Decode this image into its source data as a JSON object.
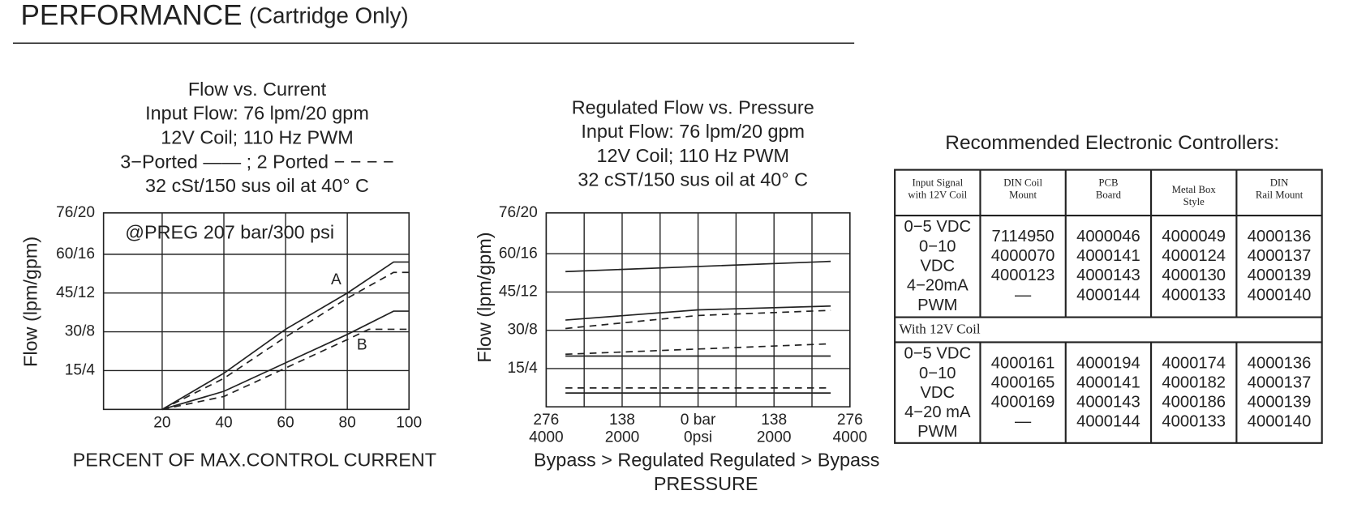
{
  "header": {
    "title": "PERFORMANCE",
    "subtitle": "(Cartridge Only)"
  },
  "chart_data": [
    {
      "type": "line",
      "title": [
        "Flow vs. Current",
        "Input Flow: 76 lpm/20 gpm",
        "12V Coil; 110 Hz PWM",
        "3−Ported —— ; 2 Ported − − − −",
        "32 cSt/150 sus oil at 40°   C"
      ],
      "annotation": "@PREG 207 bar/300 psi",
      "x_label": "PERCENT OF MAX.CONTROL CURRENT",
      "y_label": "Flow (lpm/gpm)",
      "xlim": [
        1,
        100
      ],
      "xticks": [
        20,
        40,
        60,
        80,
        100
      ],
      "ylim": [
        0,
        76
      ],
      "yticks": [
        {
          "value": 15,
          "label": "15/4"
        },
        {
          "value": 30,
          "label": "30/8"
        },
        {
          "value": 45,
          "label": "45/12"
        },
        {
          "value": 60,
          "label": "60/16"
        },
        {
          "value": 76,
          "label": "76/20"
        }
      ],
      "grid": true,
      "series": [
        {
          "label": "A",
          "color": "#222",
          "dash": false,
          "x": [
            20,
            40,
            60,
            80,
            95,
            100
          ],
          "values": [
            0,
            14,
            31,
            45,
            57,
            57
          ]
        },
        {
          "color": "#222",
          "dash": true,
          "x": [
            20,
            40,
            60,
            80,
            95,
            100
          ],
          "values": [
            0,
            12,
            28,
            43,
            53,
            53
          ]
        },
        {
          "label": "B",
          "color": "#222",
          "dash": false,
          "x": [
            20,
            40,
            60,
            80,
            95,
            100
          ],
          "values": [
            0,
            7,
            18,
            29,
            38,
            38
          ]
        },
        {
          "color": "#222",
          "dash": true,
          "x": [
            20,
            40,
            60,
            80,
            87,
            100
          ],
          "values": [
            0,
            5,
            16,
            27,
            31,
            31
          ]
        }
      ]
    },
    {
      "type": "line",
      "title": [
        "Regulated Flow vs. Pressure",
        "Input Flow: 76 lpm/20 gpm",
        "12V Coil; 110 Hz PWM",
        "32 cST/150 sus oil at 40°   C"
      ],
      "x_label": "PRESSURE",
      "x_label_left": "Bypass > Regulated",
      "x_label_right": "Regulated > Bypass",
      "y_label": "Flow (lpm/gpm)",
      "xlim": [
        -276,
        276
      ],
      "xticks": [
        {
          "value": -276,
          "label": "276"
        },
        {
          "value": -138,
          "label": "138"
        },
        {
          "value": 0,
          "label": "0 bar"
        },
        138,
        276
      ],
      "x2lim": [
        -4000,
        4000
      ],
      "x2ticks": [
        {
          "value": -4000,
          "label": "4000"
        },
        {
          "value": -2000,
          "label": "2000"
        },
        {
          "value": 0,
          "label": "0psi"
        },
        2000,
        4000
      ],
      "ylim": [
        0,
        76
      ],
      "yticks": [
        {
          "value": 15,
          "label": "15/4"
        },
        {
          "value": 30,
          "label": "30/8"
        },
        {
          "value": 45,
          "label": "45/12"
        },
        {
          "value": 60,
          "label": "60/16"
        },
        {
          "value": 76,
          "label": "76/20"
        }
      ],
      "grid": true,
      "series": [
        {
          "color": "#222",
          "dash": false,
          "x": [
            -241,
            0,
            241
          ],
          "values": [
            53,
            55,
            57
          ]
        },
        {
          "color": "#222",
          "dash": false,
          "x": [
            -241,
            0,
            241
          ],
          "values": [
            34,
            38,
            39.5
          ]
        },
        {
          "color": "#222",
          "dash": true,
          "x": [
            -241,
            0,
            241
          ],
          "values": [
            30.7,
            35.8,
            37.8
          ]
        },
        {
          "color": "#222",
          "dash": true,
          "x": [
            -241,
            241
          ],
          "values": [
            20.6,
            24.7
          ]
        },
        {
          "color": "#222",
          "dash": false,
          "x": [
            -241,
            241
          ],
          "values": [
            19.9,
            19.9
          ]
        },
        {
          "color": "#222",
          "dash": true,
          "x": [
            -241,
            241
          ],
          "values": [
            7.4,
            7.4
          ]
        },
        {
          "color": "#222",
          "dash": false,
          "x": [
            -241,
            241
          ],
          "values": [
            5.4,
            5.4
          ]
        }
      ]
    }
  ],
  "table": {
    "title": "Recommended Electronic Controllers:",
    "header": [
      [
        "Input Signal",
        "with 12V Coil"
      ],
      [
        "DIN Coil",
        "Mount"
      ],
      [
        "PCB",
        "Board"
      ],
      [
        "Metal Box",
        "Style"
      ],
      [
        "DIN",
        "Rail Mount"
      ]
    ],
    "group1": [
      [
        "0−5 VDC",
        "0−10",
        "VDC",
        "4−20mA",
        "PWM"
      ],
      [
        "7114950",
        "4000070",
        "4000123",
        "—"
      ],
      [
        "4000046",
        "4000141",
        "4000143",
        "4000144"
      ],
      [
        "4000049",
        "4000124",
        "4000130",
        "4000133"
      ],
      [
        "4000136",
        "4000137",
        "4000139",
        "4000140"
      ]
    ],
    "divider": "With 12V Coil",
    "group2": [
      [
        "0−5 VDC",
        "0−10",
        "VDC",
        "4−20 mA",
        "PWM"
      ],
      [
        "4000161",
        "4000165",
        "4000169",
        "—"
      ],
      [
        "4000194",
        "4000141",
        "4000143",
        "4000144"
      ],
      [
        "4000174",
        "4000182",
        "4000186",
        "4000133"
      ],
      [
        "4000136",
        "4000137",
        "4000139",
        "4000140"
      ]
    ]
  }
}
